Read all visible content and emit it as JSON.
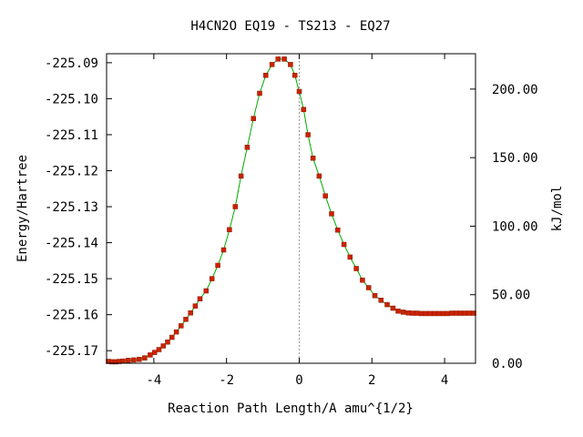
{
  "chart_data": {
    "type": "line",
    "title": "H4CN2O    EQ19 - TS213 - EQ27",
    "xlabel": "Reaction Path Length/A amu^{1/2}",
    "ylabel": "Energy/Hartree",
    "y2label": "kJ/mol",
    "xlim": [
      -5.3,
      4.85
    ],
    "ylim": [
      -225.1735,
      -225.0875
    ],
    "y2lim": [
      0,
      225.8
    ],
    "x_ticks": [
      -4,
      -2,
      0,
      2,
      4
    ],
    "x_tick_labels": [
      "-4",
      "-2",
      "0",
      "2",
      "4"
    ],
    "y_ticks": [
      -225.09,
      -225.1,
      -225.11,
      -225.12,
      -225.13,
      -225.14,
      -225.15,
      -225.16,
      -225.17
    ],
    "y_tick_labels": [
      "-225.09",
      "-225.10",
      "-225.11",
      "-225.12",
      "-225.13",
      "-225.14",
      "-225.15",
      "-225.16",
      "-225.17"
    ],
    "y2_ticks": [
      0,
      50,
      100,
      150,
      200
    ],
    "y2_tick_labels": [
      "0.00",
      "50.00",
      "100.00",
      "150.00",
      "200.00"
    ],
    "ts_marker_x": 0,
    "grid": false,
    "line_color": "#00aa00",
    "marker_color": "#cc2200",
    "ts_line_color": "#999999",
    "series": [
      {
        "x": [
          -5.25,
          -5.15,
          -5.05,
          -4.95,
          -4.85,
          -4.7,
          -4.55,
          -4.4,
          -4.25,
          -4.1,
          -3.98,
          -3.86,
          -3.74,
          -3.62,
          -3.5,
          -3.38,
          -3.25,
          -3.12,
          -2.99,
          -2.86,
          -2.73,
          -2.56,
          -2.4,
          -2.24,
          -2.08,
          -1.92,
          -1.76,
          -1.6,
          -1.43,
          -1.26,
          -1.09,
          -0.92,
          -0.75,
          -0.58,
          -0.41,
          -0.24,
          -0.12,
          0.0,
          0.12,
          0.24,
          0.38,
          0.55,
          0.72,
          0.89,
          1.06,
          1.23,
          1.4,
          1.57,
          1.74,
          1.91,
          2.08,
          2.25,
          2.42,
          2.58,
          2.72,
          2.86,
          3.0,
          3.12,
          3.24,
          3.36,
          3.48,
          3.6,
          3.72,
          3.84,
          3.96,
          4.08,
          4.2,
          4.32,
          4.44,
          4.56,
          4.68,
          4.8
        ],
        "y": [
          -225.173,
          -225.1731,
          -225.1731,
          -225.173,
          -225.1729,
          -225.1727,
          -225.1726,
          -225.1724,
          -225.172,
          -225.1712,
          -225.1705,
          -225.1697,
          -225.1687,
          -225.1676,
          -225.1663,
          -225.1648,
          -225.1631,
          -225.1613,
          -225.1595,
          -225.1576,
          -225.1556,
          -225.1534,
          -225.15,
          -225.1463,
          -225.142,
          -225.1364,
          -225.13,
          -225.1215,
          -225.1135,
          -225.1055,
          -225.0985,
          -225.0935,
          -225.0905,
          -225.089,
          -225.089,
          -225.0905,
          -225.0935,
          -225.098,
          -225.103,
          -225.11,
          -225.1165,
          -225.1215,
          -225.127,
          -225.132,
          -225.1365,
          -225.1405,
          -225.144,
          -225.1472,
          -225.1504,
          -225.1525,
          -225.1547,
          -225.156,
          -225.1572,
          -225.1582,
          -225.159,
          -225.1593,
          -225.1595,
          -225.1596,
          -225.1596,
          -225.1597,
          -225.1597,
          -225.1597,
          -225.1597,
          -225.1597,
          -225.1597,
          -225.1597,
          -225.1596,
          -225.1596,
          -225.1596,
          -225.1596,
          -225.1596,
          -225.1596
        ]
      }
    ]
  }
}
